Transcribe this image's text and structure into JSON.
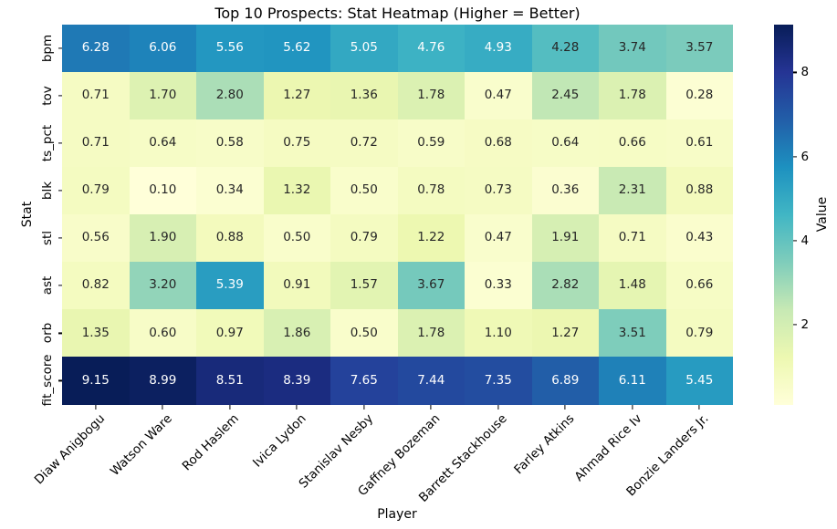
{
  "chart_data": {
    "type": "heatmap",
    "title": "Top 10 Prospects: Stat Heatmap (Higher = Better)",
    "xlabel": "Player",
    "ylabel": "Stat",
    "colorbar_label": "Value",
    "colorbar_ticks": [
      2,
      4,
      6,
      8
    ],
    "categories": [
      "Diaw Anigbogu",
      "Watson Ware",
      "Rod Haslem",
      "Ivica Lydon",
      "Stanislav Nesby",
      "Gaffney Bozeman",
      "Barrett Stackhouse",
      "Farley Atkins",
      "Ahmad Rice Iv",
      "Bonzie Landers Jr."
    ],
    "rows": [
      "bpm",
      "tov",
      "ts_pct",
      "blk",
      "stl",
      "ast",
      "orb",
      "fit_score"
    ],
    "values": [
      [
        6.28,
        6.06,
        5.56,
        5.62,
        5.05,
        4.76,
        4.93,
        4.28,
        3.74,
        3.57
      ],
      [
        0.71,
        1.7,
        2.8,
        1.27,
        1.36,
        1.78,
        0.47,
        2.45,
        1.78,
        0.28
      ],
      [
        0.71,
        0.64,
        0.58,
        0.75,
        0.72,
        0.59,
        0.68,
        0.64,
        0.66,
        0.61
      ],
      [
        0.79,
        0.1,
        0.34,
        1.32,
        0.5,
        0.78,
        0.73,
        0.36,
        2.31,
        0.88
      ],
      [
        0.56,
        1.9,
        0.88,
        0.5,
        0.79,
        1.22,
        0.47,
        1.91,
        0.71,
        0.43
      ],
      [
        0.82,
        3.2,
        5.39,
        0.91,
        1.57,
        3.67,
        0.33,
        2.82,
        1.48,
        0.66
      ],
      [
        1.35,
        0.6,
        0.97,
        1.86,
        0.5,
        1.78,
        1.1,
        1.27,
        3.51,
        0.79
      ],
      [
        9.15,
        8.99,
        8.51,
        8.39,
        7.65,
        7.44,
        7.35,
        6.89,
        6.11,
        5.45
      ]
    ],
    "value_decimals": 2,
    "annot": true,
    "grid": false,
    "legend_position": "colorbar-right",
    "colormap": {
      "name": "YlGnBu",
      "stops": [
        [
          0.0,
          "#ffffd9"
        ],
        [
          0.125,
          "#edf8b1"
        ],
        [
          0.25,
          "#c7e9b4"
        ],
        [
          0.375,
          "#7fcdbb"
        ],
        [
          0.5,
          "#41b6c4"
        ],
        [
          0.625,
          "#1d91c0"
        ],
        [
          0.75,
          "#225ea8"
        ],
        [
          0.875,
          "#253494"
        ],
        [
          1.0,
          "#081d58"
        ]
      ]
    },
    "text_colors": {
      "light": "#ffffff",
      "dark": "#262626",
      "axis": "#000000"
    }
  }
}
